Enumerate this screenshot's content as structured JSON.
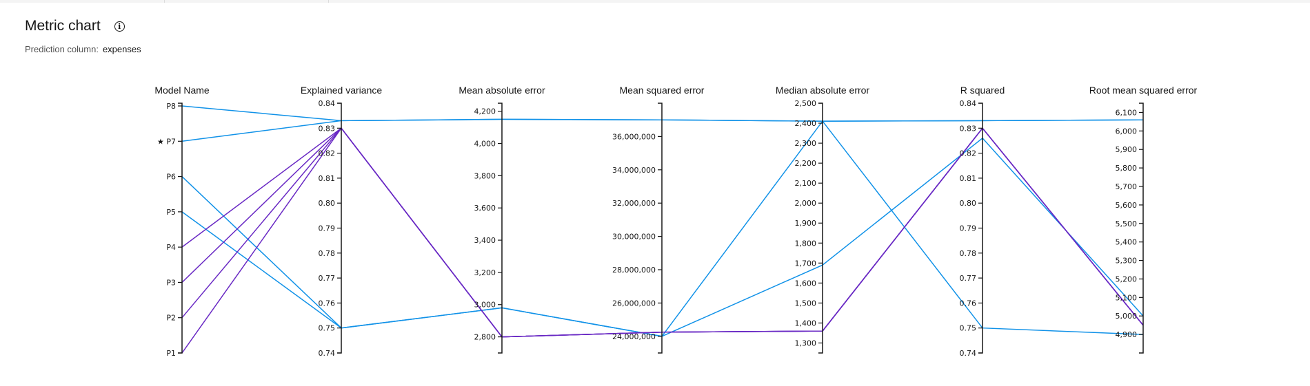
{
  "header": {
    "title": "Metric chart",
    "info_icon": "info-icon",
    "prediction_label": "Prediction column:",
    "prediction_value": "expenses"
  },
  "colors": {
    "blue": "#1192e8",
    "purple": "#6929c4"
  },
  "chart_data": {
    "type": "parallel-coordinates",
    "title": "Metric chart",
    "axes": [
      {
        "name": "Model Name",
        "categorical": true,
        "categories": [
          "P8",
          "P7",
          "P6",
          "P5",
          "P4",
          "P3",
          "P2",
          "P1"
        ],
        "starred": "P7"
      },
      {
        "name": "Explained variance",
        "range": [
          0.74,
          0.84
        ],
        "ticks": [
          "0.74",
          "0.75",
          "0.76",
          "0.77",
          "0.78",
          "0.79",
          "0.80",
          "0.81",
          "0.82",
          "0.83",
          "0.84"
        ],
        "tick_values": [
          0.74,
          0.75,
          0.76,
          0.77,
          0.78,
          0.79,
          0.8,
          0.81,
          0.82,
          0.83,
          0.84
        ]
      },
      {
        "name": "Mean absolute error",
        "range": [
          2700,
          4250
        ],
        "ticks": [
          "2,800",
          "3,000",
          "3,200",
          "3,400",
          "3,600",
          "3,800",
          "4,000",
          "4,200"
        ],
        "tick_values": [
          2800,
          3000,
          3200,
          3400,
          3600,
          3800,
          4000,
          4200
        ]
      },
      {
        "name": "Mean squared error",
        "range": [
          23000000,
          38000000
        ],
        "ticks": [
          "24,000,000",
          "26,000,000",
          "28,000,000",
          "30,000,000",
          "32,000,000",
          "34,000,000",
          "36,000,000"
        ],
        "tick_values": [
          24000000,
          26000000,
          28000000,
          30000000,
          32000000,
          34000000,
          36000000
        ]
      },
      {
        "name": "Median absolute error",
        "range": [
          1250,
          2500
        ],
        "ticks": [
          "1,300",
          "1,400",
          "1,500",
          "1,600",
          "1,700",
          "1,800",
          "1,900",
          "2,000",
          "2,100",
          "2,200",
          "2,300",
          "2,400",
          "2,500"
        ],
        "tick_values": [
          1300,
          1400,
          1500,
          1600,
          1700,
          1800,
          1900,
          2000,
          2100,
          2200,
          2300,
          2400,
          2500
        ]
      },
      {
        "name": "R squared",
        "range": [
          0.74,
          0.84
        ],
        "ticks": [
          "0.74",
          "0.75",
          "0.76",
          "0.77",
          "0.78",
          "0.79",
          "0.80",
          "0.81",
          "0.82",
          "0.83",
          "0.84"
        ],
        "tick_values": [
          0.74,
          0.75,
          0.76,
          0.77,
          0.78,
          0.79,
          0.8,
          0.81,
          0.82,
          0.83,
          0.84
        ]
      },
      {
        "name": "Root mean squared error",
        "range": [
          4800,
          6150
        ],
        "ticks": [
          "4,900",
          "5,000",
          "5,100",
          "5,200",
          "5,300",
          "5,400",
          "5,500",
          "5,600",
          "5,700",
          "5,800",
          "5,900",
          "6,000",
          "6,100"
        ],
        "tick_values": [
          4900,
          5000,
          5100,
          5200,
          5300,
          5400,
          5500,
          5600,
          5700,
          5800,
          5900,
          6000,
          6100
        ]
      }
    ],
    "series": [
      {
        "name": "P8",
        "color": "blue",
        "values": [
          "P8",
          0.833,
          4150,
          37000000,
          2410,
          0.833,
          6060
        ]
      },
      {
        "name": "P7",
        "color": "blue",
        "values": [
          "P7",
          0.833,
          4150,
          37000000,
          2410,
          0.833,
          6060
        ]
      },
      {
        "name": "P6",
        "color": "blue",
        "values": [
          "P6",
          0.75,
          2980,
          24000000,
          1690,
          0.826,
          5000
        ]
      },
      {
        "name": "P5",
        "color": "blue",
        "values": [
          "P5",
          0.75,
          2980,
          24000000,
          2410,
          0.75,
          4900
        ]
      },
      {
        "name": "P4",
        "color": "purple",
        "values": [
          "P4",
          0.83,
          2800,
          24250000,
          1360,
          0.83,
          4950
        ]
      },
      {
        "name": "P3",
        "color": "purple",
        "values": [
          "P3",
          0.83,
          2800,
          24250000,
          1360,
          0.83,
          4950
        ]
      },
      {
        "name": "P2",
        "color": "purple",
        "values": [
          "P2",
          0.83,
          2800,
          24250000,
          1360,
          0.83,
          4950
        ]
      },
      {
        "name": "P1",
        "color": "purple",
        "values": [
          "P1",
          0.83,
          2800,
          24250000,
          1360,
          0.83,
          4950
        ]
      }
    ]
  }
}
